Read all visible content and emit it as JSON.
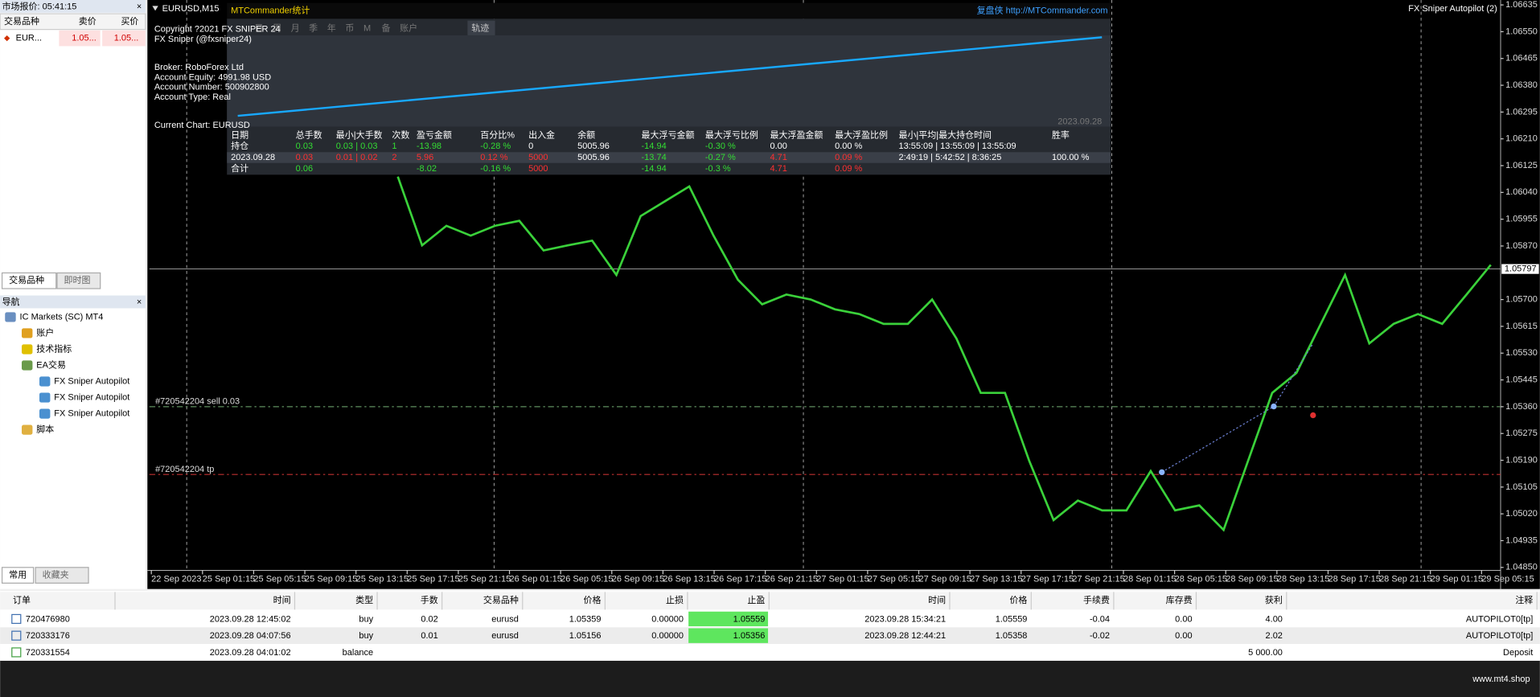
{
  "market_watch": {
    "title": "市场报价: 05:41:15",
    "headers": [
      "交易品种",
      "卖价",
      "买价"
    ],
    "row": [
      "EUR...",
      "1.05...",
      "1.05..."
    ],
    "tabs": [
      "交易品种",
      "即时图"
    ]
  },
  "navigator": {
    "title": "导航",
    "items": [
      "IC Markets (SC) MT4",
      "账户",
      "技术指标",
      "EA交易",
      "FX Sniper Autopilot",
      "FX Sniper Autopilot",
      "FX Sniper Autopilot",
      "脚本"
    ],
    "tabs": [
      "常用",
      "收藏夹"
    ]
  },
  "chart": {
    "type": "line",
    "title": "EURUSD,M15",
    "indicator": "FX Sniper Autopilot (2)",
    "color": "#3ad13a",
    "x_axis_labels": [
      "22 Sep 2023",
      "25 Sep 01:15",
      "25 Sep 05:15",
      "25 Sep 09:15",
      "25 Sep 13:15",
      "25 Sep 17:15",
      "25 Sep 21:15",
      "26 Sep 01:15",
      "26 Sep 05:15",
      "26 Sep 09:15",
      "26 Sep 13:15",
      "26 Sep 17:15",
      "26 Sep 21:15",
      "27 Sep 01:15",
      "27 Sep 05:15",
      "27 Sep 09:15",
      "27 Sep 13:15",
      "27 Sep 17:15",
      "27 Sep 21:15",
      "28 Sep 01:15",
      "28 Sep 05:15",
      "28 Sep 09:15",
      "28 Sep 13:15",
      "28 Sep 17:15",
      "28 Sep 21:15",
      "29 Sep 01:15",
      "29 Sep 05:15"
    ],
    "values": [
      1.0609,
      1.05872,
      1.05934,
      1.05903,
      1.05934,
      1.0595,
      1.05856,
      1.05872,
      1.05887,
      1.05778,
      1.05965,
      1.06012,
      1.06059,
      1.05903,
      1.05763,
      1.05685,
      1.05716,
      1.057,
      1.05669,
      1.05654,
      1.05623,
      1.05623,
      1.057,
      1.05576,
      1.05404,
      1.05404,
      1.05187,
      1.05,
      1.05062,
      1.05031,
      1.05031,
      1.05156,
      1.05031,
      1.05047,
      1.04969,
      1.05187,
      1.05404,
      1.05467,
      1.05623,
      1.05778,
      1.05561,
      1.05623,
      1.05654,
      1.05623,
      1.05716,
      1.0581
    ],
    "ylim": [
      1.0485,
      1.06635
    ],
    "yticks": [
      1.06635,
      {
        "value": 1.0655,
        "label": "1.06550"
      },
      1.06465,
      {
        "value": 1.0638,
        "label": "1.06380"
      },
      1.06295,
      {
        "value": 1.0621,
        "label": "1.06210"
      },
      1.06125,
      {
        "value": 1.0604,
        "label": "1.06040"
      },
      1.05955,
      {
        "value": 1.0587,
        "label": "1.05870"
      },
      {
        "value": 1.057,
        "label": "1.05700"
      },
      1.05615,
      {
        "value": 1.0553,
        "label": "1.05530"
      },
      1.05445,
      {
        "value": 1.0536,
        "label": "1.05360"
      },
      1.05275,
      {
        "value": 1.0519,
        "label": "1.05190"
      },
      1.05105,
      {
        "value": 1.0502,
        "label": "1.05020"
      },
      1.04935,
      {
        "value": 1.0485,
        "label": "1.04850"
      }
    ],
    "current_price": {
      "value": 1.05797,
      "label": "1.05797"
    },
    "levels": [
      {
        "label": "#720542204 sell 0.03",
        "value": 1.0536,
        "color": "#5f8f5f"
      },
      {
        "label": "#720542204 tp",
        "value": 1.05145,
        "color": "#c03030"
      }
    ]
  },
  "overlay": {
    "title": "MTCommander统计",
    "link": "复盘侠 http://MTCommander.com",
    "tabs": [
      "日",
      "周",
      "月",
      "季",
      "年",
      "币",
      "M",
      "备",
      "账户"
    ],
    "track": "轨迹",
    "curve_date": "2023.09.28",
    "info": [
      "Copyright ?2021 FX SNIPER 24",
      "FX Sniper (@fxsniper24)",
      "Broker: RoboForex Ltd",
      "Account Equity: 4991.98 USD",
      "Account Number: 500902800",
      "Account Type: Real",
      "Current Chart: EURUSD"
    ]
  },
  "stats": {
    "headers": [
      "日期",
      "总手数",
      "最小|大手数",
      "次数",
      "盈亏金额",
      "百分比%",
      "出入金",
      "余额",
      "最大浮亏金额",
      "最大浮亏比例",
      "最大浮盈金额",
      "最大浮盈比例",
      "最小|平均|最大持仓时间",
      "胜率"
    ],
    "rows": [
      [
        "持仓",
        "0.03",
        "0.03 | 0.03",
        "1",
        "-13.98",
        "-0.28 %",
        "0",
        "5005.96",
        "-14.94",
        "-0.30 %",
        "0.00",
        "0.00 %",
        "13:55:09 | 13:55:09 | 13:55:09",
        null
      ],
      [
        "2023.09.28",
        "0.03",
        "0.01 | 0.02",
        "2",
        "5.96",
        "0.12 %",
        "5000",
        "5005.96",
        "-13.74",
        "-0.27 %",
        "4.71",
        "0.09 %",
        "2:49:19 | 5:42:52 | 8:36:25",
        "100.00 %"
      ],
      [
        "合计",
        "0.06",
        null,
        null,
        "-8.02",
        "-0.16 %",
        "5000",
        null,
        "-14.94",
        "-0.3 %",
        "4.71",
        "0.09 %",
        null,
        null
      ]
    ]
  },
  "terminal": {
    "headers": [
      "订单",
      "时间",
      "类型",
      "手数",
      "交易品种",
      "价格",
      "止损",
      "止盈",
      "时间",
      "价格",
      "手续费",
      "库存费",
      "获利",
      "注释"
    ],
    "rows": [
      [
        "720476980",
        "2023.09.28 12:45:02",
        "buy",
        "0.02",
        "eurusd",
        "1.05359",
        "0.00000",
        "1.05559",
        "2023.09.28 15:34:21",
        "1.05559",
        "-0.04",
        "0.00",
        "4.00",
        "AUTOPILOT0[tp]"
      ],
      [
        "720333176",
        "2023.09.28 04:07:56",
        "buy",
        "0.01",
        "eurusd",
        "1.05156",
        "0.00000",
        "1.05356",
        "2023.09.28 12:44:21",
        "1.05358",
        "-0.02",
        "0.00",
        "2.02",
        "AUTOPILOT0[tp]"
      ],
      [
        "720331554",
        "2023.09.28 04:01:02",
        "balance",
        null,
        null,
        null,
        null,
        null,
        null,
        null,
        null,
        null,
        "5 000.00",
        "Deposit"
      ]
    ]
  },
  "watermark": "www.mt4.shop"
}
